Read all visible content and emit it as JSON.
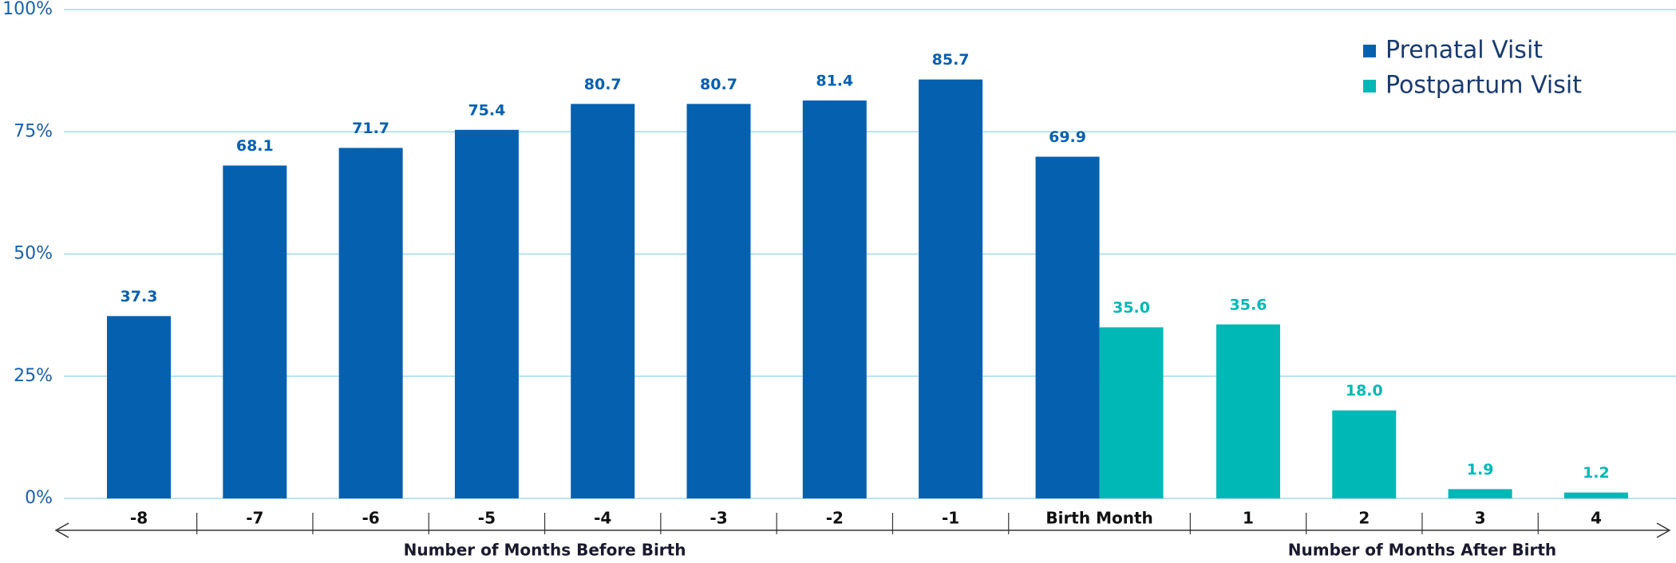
{
  "chart_data": {
    "type": "bar",
    "categories": [
      "-8",
      "-7",
      "-6",
      "-5",
      "-4",
      "-3",
      "-2",
      "-1",
      "Birth Month",
      "1",
      "2",
      "3",
      "4"
    ],
    "series": [
      {
        "name": "Prenatal Visit",
        "color": "#0560b0",
        "values": [
          37.3,
          68.1,
          71.7,
          75.4,
          80.7,
          80.7,
          81.4,
          85.7,
          69.9,
          null,
          null,
          null,
          null
        ],
        "value_labels": [
          "37.3",
          "68.1",
          "71.7",
          "75.4",
          "80.7",
          "80.7",
          "81.4",
          "85.7",
          "69.9",
          null,
          null,
          null,
          null
        ]
      },
      {
        "name": "Postpartum Visit",
        "color": "#00b8b5",
        "values": [
          null,
          null,
          null,
          null,
          null,
          null,
          null,
          null,
          35.0,
          35.6,
          18.0,
          1.9,
          1.2
        ],
        "value_labels": [
          null,
          null,
          null,
          null,
          null,
          null,
          null,
          null,
          "35.0",
          "35.6",
          "18.0",
          "1.9",
          "1.2"
        ]
      }
    ],
    "axis_titles": [
      "Number of Months Before Birth",
      "Number of Months After Birth"
    ],
    "ylim": [
      0,
      100
    ],
    "yticks": [
      {
        "value": 0,
        "label": "0%"
      },
      {
        "value": 25,
        "label": "25%"
      },
      {
        "value": 50,
        "label": "50%"
      },
      {
        "value": 75,
        "label": "75%"
      },
      {
        "value": 100,
        "label": "100%"
      }
    ],
    "grid": true,
    "legend": "top-right"
  }
}
